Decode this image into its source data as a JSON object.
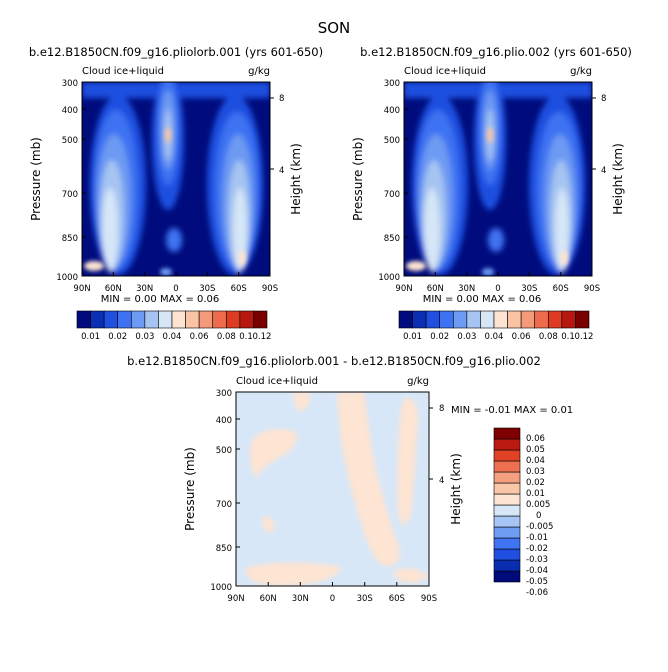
{
  "figure_title": "SON",
  "colors": {
    "seq": [
      "#000c7d",
      "#0a2fb5",
      "#1f50e0",
      "#3d72f2",
      "#6d9af2",
      "#a6c4f2",
      "#d6e6f7",
      "#fce3d2",
      "#f9c3a4",
      "#f4997a",
      "#ee6b4b",
      "#dd3b22",
      "#b61810",
      "#7a0000"
    ],
    "diff": [
      "#000a7a",
      "#0a2db0",
      "#1f4fe0",
      "#3f74f2",
      "#6f9df2",
      "#a7c6f5",
      "#d7e7f8",
      "#fde4d3",
      "#f9c6a8",
      "#f49f80",
      "#ee7050",
      "#e04226",
      "#bb1a10",
      "#7e0000"
    ]
  },
  "chart_data": [
    {
      "type": "heatmap",
      "title": "b.e12.B1850CN.f09_g16.pliolorb.001 (yrs 601-650)",
      "left_string": "Cloud ice+liquid",
      "right_string": "g/kg",
      "ylabel": "Pressure (mb)",
      "y2label": "Height (km)",
      "x_ticks": [
        "90N",
        "60N",
        "30N",
        "0",
        "30S",
        "60S",
        "90S"
      ],
      "y_ticks": [
        "300",
        "400",
        "500",
        "700",
        "850",
        "1000"
      ],
      "y2_ticks": [
        "8",
        "4"
      ],
      "min_max": "MIN =    0.00   MAX =    0.06",
      "colorbar_labels": [
        "0.01",
        "0.02",
        "0.03",
        "0.04",
        "0.06",
        "0.08",
        "0.1",
        "0.12"
      ],
      "levels": [
        0.005,
        0.01,
        0.015,
        0.02,
        0.025,
        0.03,
        0.04,
        0.05,
        0.06,
        0.07,
        0.08,
        0.09,
        0.1,
        0.12
      ]
    },
    {
      "type": "heatmap",
      "title": "b.e12.B1850CN.f09_g16.plio.002 (yrs 601-650)",
      "left_string": "Cloud ice+liquid",
      "right_string": "g/kg",
      "ylabel": "Pressure (mb)",
      "y2label": "Height (km)",
      "x_ticks": [
        "90N",
        "60N",
        "30N",
        "0",
        "30S",
        "60S",
        "90S"
      ],
      "y_ticks": [
        "300",
        "400",
        "500",
        "700",
        "850",
        "1000"
      ],
      "y2_ticks": [
        "8",
        "4"
      ],
      "min_max": "MIN =    0.00   MAX =    0.06",
      "colorbar_labels": [
        "0.01",
        "0.02",
        "0.03",
        "0.04",
        "0.06",
        "0.08",
        "0.1",
        "0.12"
      ],
      "levels": [
        0.005,
        0.01,
        0.015,
        0.02,
        0.025,
        0.03,
        0.04,
        0.05,
        0.06,
        0.07,
        0.08,
        0.09,
        0.1,
        0.12
      ]
    },
    {
      "type": "heatmap",
      "title": "b.e12.B1850CN.f09_g16.pliolorb.001 - b.e12.B1850CN.f09_g16.plio.002",
      "left_string": "Cloud ice+liquid",
      "right_string": "g/kg",
      "ylabel": "Pressure (mb)",
      "y2label": "Height (km)",
      "x_ticks": [
        "90N",
        "60N",
        "30N",
        "0",
        "30S",
        "60S",
        "90S"
      ],
      "y_ticks": [
        "300",
        "400",
        "500",
        "700",
        "850",
        "1000"
      ],
      "y2_ticks": [
        "8",
        "4"
      ],
      "min_max": "MIN =   -0.01   MAX =    0.01",
      "colorbar_labels": [
        "0.06",
        "0.05",
        "0.04",
        "0.03",
        "0.02",
        "0.01",
        "0.005",
        "0",
        "-0.005",
        "-0.01",
        "-0.02",
        "-0.03",
        "-0.04",
        "-0.05",
        "-0.06"
      ],
      "levels": [
        -0.06,
        -0.05,
        -0.04,
        -0.03,
        -0.02,
        -0.01,
        -0.005,
        0,
        0.005,
        0.01,
        0.02,
        0.03,
        0.04,
        0.05,
        0.06
      ]
    }
  ]
}
